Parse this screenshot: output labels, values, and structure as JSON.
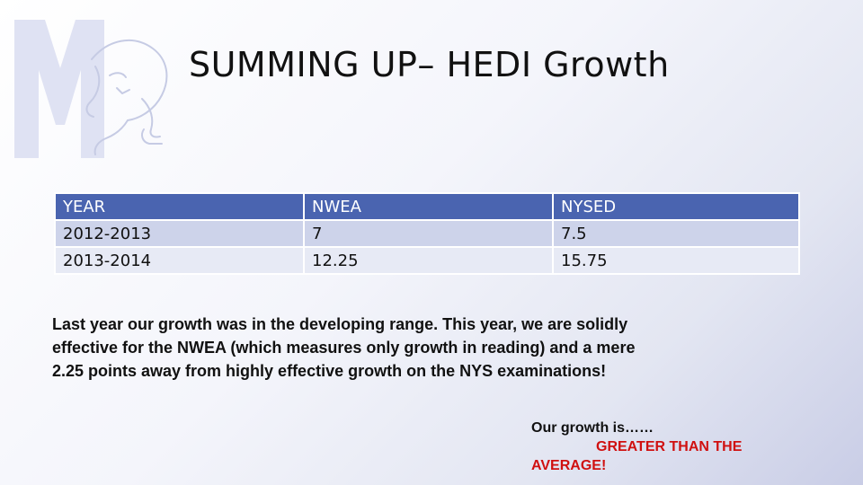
{
  "slide": {
    "title": "SUMMING UP– HEDI Growth",
    "logo_icon": "m-letter-panther-icon"
  },
  "table": {
    "headers": [
      "YEAR",
      "NWEA",
      "NYSED"
    ],
    "rows": [
      [
        "2012-2013",
        "7",
        "7.5"
      ],
      [
        "2013-2014",
        "12.25",
        "15.75"
      ]
    ],
    "header_color": "#4a64b0",
    "row_colors": [
      "#cdd3ea",
      "#e7eaf5"
    ]
  },
  "summary": "Last year our growth was in the developing range. This year, we are solidly effective for the NWEA (which measures only growth in reading) and a mere 2.25 points away from highly effective growth on the NYS examinations!",
  "callout": {
    "lead": "Our growth is……",
    "emphasis_1": "GREATER THAN THE",
    "emphasis_2": "AVERAGE!",
    "emphasis_color": "#d01010"
  }
}
